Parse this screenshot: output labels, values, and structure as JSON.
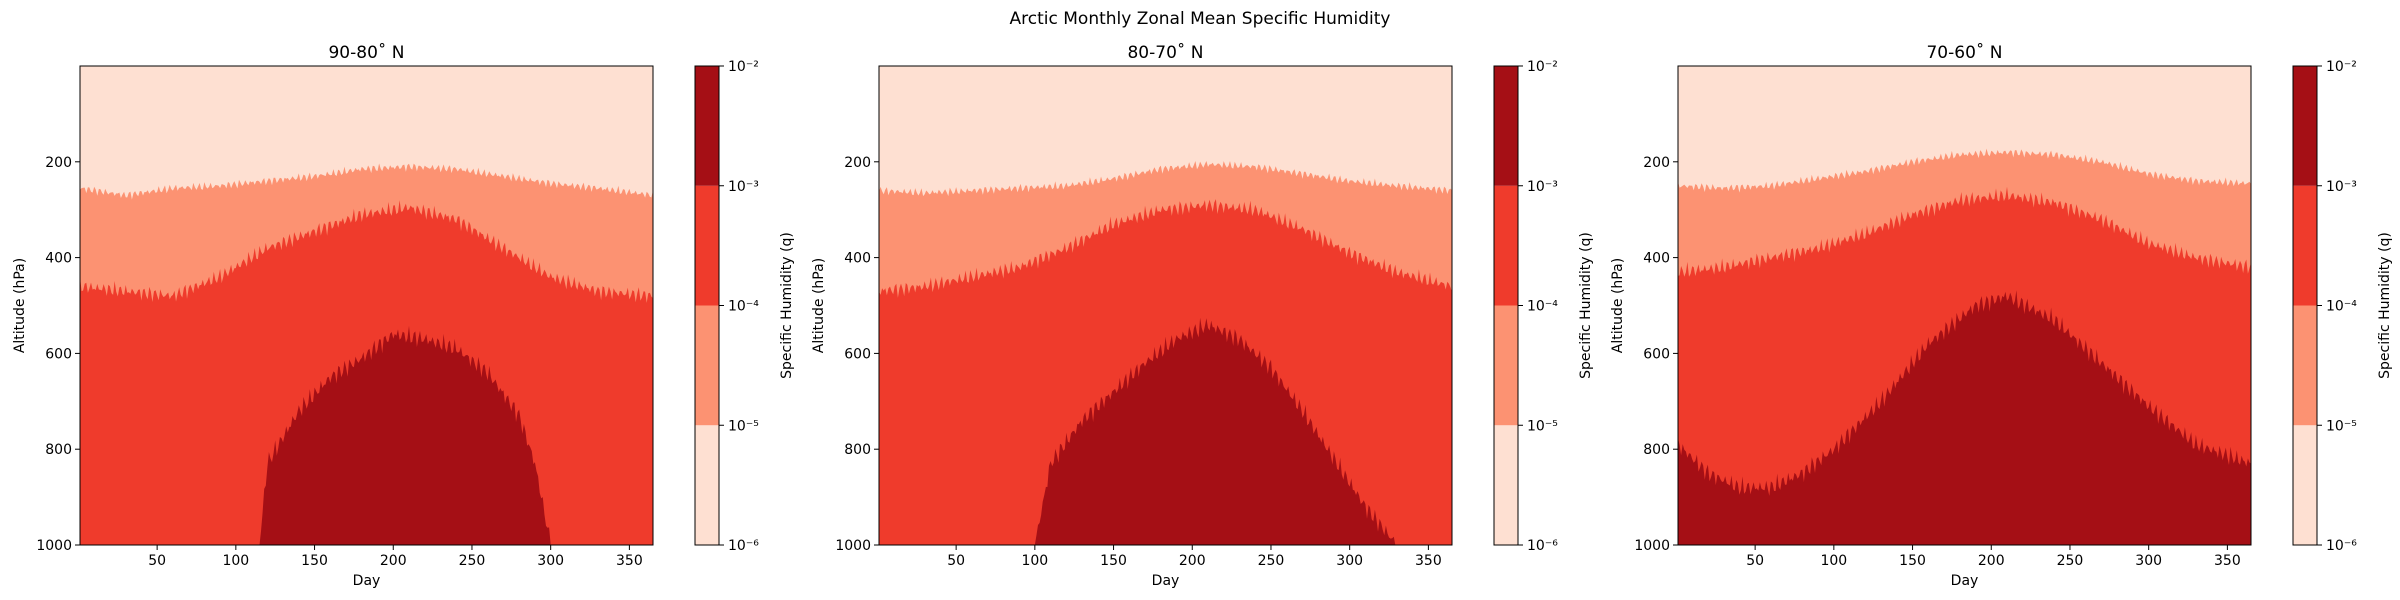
{
  "figure_title": "Arctic Monthly Zonal Mean Specific Humidity",
  "colors": {
    "level_1e-6_1e-5": "#fee0d2",
    "level_1e-5_1e-4": "#fc9272",
    "level_1e-4_1e-3": "#ef3b2c",
    "level_1e-3_1e-2": "#a50f15"
  },
  "chart_data": [
    {
      "type": "heatmap",
      "subtype": "filled-contour",
      "title": "90-80˚ N",
      "xlabel": "Day",
      "ylabel": "Altitude (hPa)",
      "xlim": [
        1,
        365
      ],
      "ylim": [
        1000,
        0
      ],
      "xticks": [
        50,
        100,
        150,
        200,
        250,
        300,
        350
      ],
      "yticks": [
        200,
        400,
        600,
        800,
        1000
      ],
      "colorbar": {
        "label": "Specific Humidity (q)",
        "scale": "log",
        "levels": [
          1e-06,
          1e-05,
          0.0001,
          0.001,
          0.01
        ],
        "tick_labels": [
          "10⁻⁶",
          "10⁻⁵",
          "10⁻⁴",
          "10⁻³",
          "10⁻²"
        ]
      },
      "boundaries": [
        {
          "between": "1e-6/1e-5 and 1e-5/1e-4",
          "day": [
            1,
            30,
            60,
            90,
            120,
            150,
            180,
            210,
            240,
            270,
            300,
            330,
            365
          ],
          "pressure_hPa": [
            255,
            270,
            255,
            250,
            240,
            230,
            215,
            210,
            215,
            230,
            245,
            255,
            270
          ]
        },
        {
          "between": "1e-5/1e-4 and 1e-4/1e-3",
          "day": [
            1,
            30,
            60,
            90,
            120,
            150,
            180,
            210,
            240,
            270,
            300,
            330,
            365
          ],
          "pressure_hPa": [
            460,
            470,
            480,
            440,
            380,
            345,
            310,
            295,
            320,
            380,
            440,
            470,
            480
          ]
        },
        {
          "between": "1e-4/1e-3 and 1e-3/1e-2",
          "day": [
            115,
            120,
            140,
            160,
            180,
            200,
            220,
            240,
            260,
            280,
            290,
            300
          ],
          "pressure_hPa": [
            1000,
            830,
            720,
            650,
            610,
            560,
            570,
            590,
            640,
            730,
            830,
            1000
          ]
        }
      ]
    },
    {
      "type": "heatmap",
      "subtype": "filled-contour",
      "title": "80-70˚ N",
      "xlabel": "Day",
      "ylabel": "Altitude (hPa)",
      "xlim": [
        1,
        365
      ],
      "ylim": [
        1000,
        0
      ],
      "xticks": [
        50,
        100,
        150,
        200,
        250,
        300,
        350
      ],
      "yticks": [
        200,
        400,
        600,
        800,
        1000
      ],
      "colorbar": {
        "label": "Specific Humidity (q)",
        "scale": "log",
        "levels": [
          1e-06,
          1e-05,
          0.0001,
          0.001,
          0.01
        ],
        "tick_labels": [
          "10⁻⁶",
          "10⁻⁵",
          "10⁻⁴",
          "10⁻³",
          "10⁻²"
        ]
      },
      "boundaries": [
        {
          "between": "1e-6/1e-5 and 1e-5/1e-4",
          "day": [
            1,
            30,
            60,
            90,
            120,
            150,
            180,
            210,
            240,
            270,
            300,
            330,
            365
          ],
          "pressure_hPa": [
            260,
            265,
            260,
            255,
            250,
            235,
            215,
            205,
            210,
            225,
            240,
            250,
            260
          ]
        },
        {
          "between": "1e-5/1e-4 and 1e-4/1e-3",
          "day": [
            1,
            30,
            60,
            90,
            120,
            150,
            180,
            210,
            240,
            270,
            300,
            330,
            365
          ],
          "pressure_hPa": [
            470,
            460,
            440,
            420,
            380,
            330,
            300,
            290,
            300,
            340,
            390,
            430,
            460
          ]
        },
        {
          "between": "1e-4/1e-3 and 1e-3/1e-2",
          "day": [
            100,
            110,
            130,
            150,
            170,
            190,
            210,
            230,
            250,
            270,
            290,
            310,
            330
          ],
          "pressure_hPa": [
            1000,
            830,
            740,
            680,
            620,
            570,
            540,
            570,
            630,
            720,
            820,
            920,
            1000
          ]
        }
      ]
    },
    {
      "type": "heatmap",
      "subtype": "filled-contour",
      "title": "70-60˚ N",
      "xlabel": "Day",
      "ylabel": "Altitude (hPa)",
      "xlim": [
        1,
        365
      ],
      "ylim": [
        1000,
        0
      ],
      "xticks": [
        50,
        100,
        150,
        200,
        250,
        300,
        350
      ],
      "yticks": [
        200,
        400,
        600,
        800,
        1000
      ],
      "colorbar": {
        "label": "Specific Humidity (q)",
        "scale": "log",
        "levels": [
          1e-06,
          1e-05,
          0.0001,
          0.001,
          0.01
        ],
        "tick_labels": [
          "10⁻⁶",
          "10⁻⁵",
          "10⁻⁴",
          "10⁻³",
          "10⁻²"
        ]
      },
      "boundaries": [
        {
          "between": "1e-6/1e-5 and 1e-5/1e-4",
          "day": [
            1,
            30,
            60,
            90,
            120,
            150,
            180,
            210,
            240,
            270,
            300,
            330,
            365
          ],
          "pressure_hPa": [
            250,
            255,
            250,
            235,
            220,
            200,
            185,
            180,
            185,
            200,
            225,
            240,
            245
          ]
        },
        {
          "between": "1e-5/1e-4 and 1e-4/1e-3",
          "day": [
            1,
            30,
            60,
            90,
            120,
            150,
            180,
            210,
            240,
            270,
            300,
            330,
            365
          ],
          "pressure_hPa": [
            430,
            420,
            400,
            380,
            350,
            310,
            280,
            270,
            285,
            320,
            370,
            400,
            420
          ]
        },
        {
          "between": "1e-4/1e-3 and 1e-3/1e-2",
          "day": [
            1,
            20,
            40,
            60,
            80,
            100,
            130,
            160,
            190,
            210,
            240,
            270,
            300,
            330,
            365
          ],
          "pressure_hPa": [
            790,
            850,
            880,
            880,
            850,
            800,
            700,
            580,
            500,
            480,
            530,
            620,
            710,
            790,
            830
          ]
        }
      ]
    }
  ]
}
